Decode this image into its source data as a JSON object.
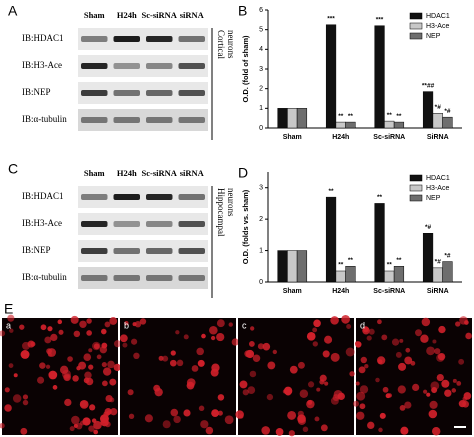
{
  "blots": [
    {
      "panel": "A",
      "columns": [
        "Sham",
        "H24h",
        "Sc-siRNA",
        "siRNA"
      ],
      "rows": [
        "IB:HDAC1",
        "IB:H3-Ace",
        "IB:NEP",
        "IB:α-tubulin"
      ],
      "side_label": [
        "Cortical",
        "neurons"
      ]
    },
    {
      "panel": "C",
      "columns": [
        "Sham",
        "H24h",
        "Sc-siRNA",
        "siRNA"
      ],
      "rows": [
        "IB:HDAC1",
        "IB:H3-Ace",
        "IB:NEP",
        "IB:α-tubulin"
      ],
      "side_label": [
        "Hippocampal",
        "neurons"
      ]
    }
  ],
  "chart_data": [
    {
      "type": "bar",
      "panel": "B",
      "y_label": "O.D. (fold of sham)",
      "categories": [
        "Sham",
        "H24h",
        "Sc-siRNA",
        "SiRNA"
      ],
      "series": [
        {
          "name": "HDAC1",
          "color": "#111111",
          "values": [
            1,
            5.25,
            5.2,
            1.85
          ],
          "significance": [
            null,
            "***",
            "***",
            "**##"
          ]
        },
        {
          "name": "H3-Ace",
          "color": "#c8c8c8",
          "values": [
            1,
            0.3,
            0.35,
            0.75
          ],
          "significance": [
            null,
            "**",
            "**",
            "*#"
          ]
        },
        {
          "name": "NEP",
          "color": "#6e6e6e",
          "values": [
            1,
            0.3,
            0.3,
            0.55
          ],
          "significance": [
            null,
            "**",
            "**",
            "*#"
          ]
        }
      ],
      "ylim": [
        0,
        6
      ],
      "yticks": [
        0,
        1,
        2,
        3,
        4,
        5,
        6
      ],
      "legend": "upper right"
    },
    {
      "type": "bar",
      "panel": "D",
      "y_label": "O.D. (folds vs. sham)",
      "categories": [
        "Sham",
        "H24h",
        "Sc-siRNA",
        "SiRNA"
      ],
      "series": [
        {
          "name": "HDAC1",
          "color": "#111111",
          "values": [
            1,
            2.7,
            2.5,
            1.55
          ],
          "significance": [
            null,
            "**",
            "**",
            "*#"
          ]
        },
        {
          "name": "H3-Ace",
          "color": "#c8c8c8",
          "values": [
            1,
            0.35,
            0.35,
            0.45
          ],
          "significance": [
            null,
            "**",
            "**",
            "*#"
          ]
        },
        {
          "name": "NEP",
          "color": "#6e6e6e",
          "values": [
            1,
            0.5,
            0.5,
            0.65
          ],
          "significance": [
            null,
            "**",
            "**",
            "*#"
          ]
        }
      ],
      "ylim": [
        0,
        3.5
      ],
      "yticks": [
        0,
        1,
        2,
        3
      ],
      "legend": "upper right"
    }
  ],
  "microscopy": {
    "panel": "E",
    "images": [
      "a",
      "b",
      "c",
      "d"
    ]
  }
}
